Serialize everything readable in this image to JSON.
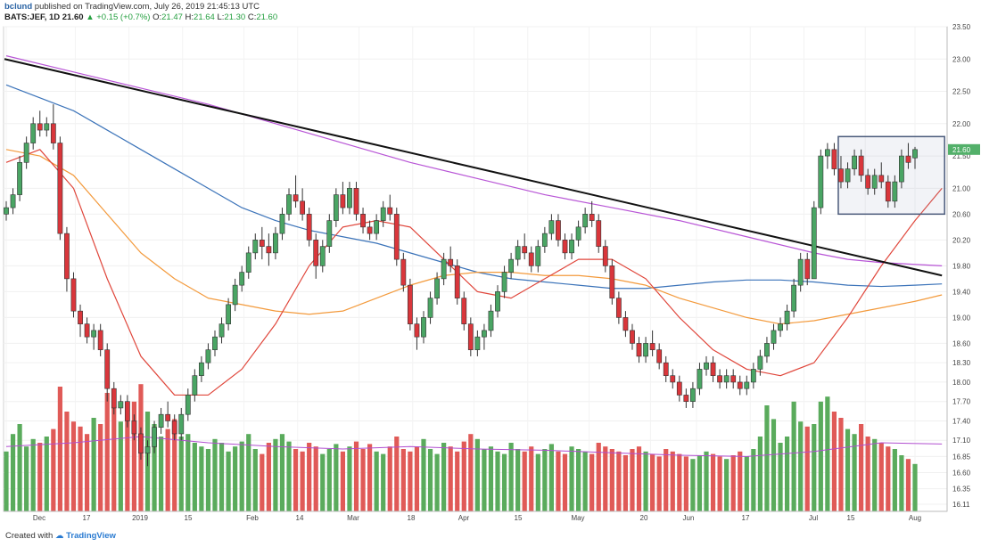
{
  "header": {
    "user": "bclund",
    "published": "published on TradingView.com, July 26, 2019 21:45:13 UTC",
    "symbol": "BATS:JEF, 1D",
    "last": "21.60",
    "change": "+0.15 (+0.7%)",
    "o_label": "O:",
    "o_value": "21.47",
    "h_label": "H:",
    "h_value": "21.64",
    "l_label": "L:",
    "l_value": "21.30",
    "c_label": "C:",
    "c_value": "21.60",
    "up_arrow": "▲"
  },
  "footer": {
    "created": "Created with",
    "brand": "TradingView"
  },
  "colors": {
    "up": "#4aa564",
    "down": "#d9363b",
    "vol_up": "#5aab5c",
    "vol_down": "#e05a57",
    "sma_fast": "#e0473c",
    "sma_mid": "#f39a3c",
    "sma_slow": "#3b73b9",
    "sma_long": "#b855d6",
    "trendline": "#111111",
    "box": "#4a5a7a",
    "vol_ma": "#b14fd0"
  },
  "chart_data": {
    "type": "candlestick",
    "ylim": [
      16.0,
      23.5
    ],
    "y_ticks": [
      "23.50",
      "23.00",
      "22.50",
      "22.00",
      "21.50",
      "21.00",
      "20.60",
      "20.20",
      "19.80",
      "19.40",
      "19.00",
      "18.60",
      "18.30",
      "18.00",
      "17.70",
      "17.40",
      "17.10",
      "16.85",
      "16.60",
      "16.35",
      "16.11"
    ],
    "x_ticks": [
      "Dec",
      "17",
      "2019",
      "15",
      "Feb",
      "14",
      "Mar",
      "18",
      "Apr",
      "15",
      "May",
      "20",
      "Jun",
      "17",
      "Jul",
      "15",
      "Aug"
    ],
    "last_price_label": "21.60",
    "candles": [
      [
        20.6,
        20.8,
        20.5,
        20.7
      ],
      [
        20.7,
        21.0,
        20.6,
        20.9
      ],
      [
        20.9,
        21.5,
        20.8,
        21.4
      ],
      [
        21.4,
        21.8,
        21.3,
        21.7
      ],
      [
        21.7,
        22.1,
        21.6,
        22.0
      ],
      [
        22.0,
        22.2,
        21.8,
        21.9
      ],
      [
        21.9,
        22.1,
        21.8,
        22.0
      ],
      [
        22.0,
        22.3,
        21.6,
        21.7
      ],
      [
        21.7,
        21.8,
        20.2,
        20.3
      ],
      [
        20.3,
        20.4,
        19.4,
        19.6
      ],
      [
        19.6,
        19.7,
        19.0,
        19.1
      ],
      [
        19.1,
        19.2,
        18.7,
        18.9
      ],
      [
        18.9,
        19.0,
        18.6,
        18.7
      ],
      [
        18.7,
        18.9,
        18.5,
        18.8
      ],
      [
        18.8,
        18.9,
        18.4,
        18.5
      ],
      [
        18.5,
        18.6,
        17.7,
        17.9
      ],
      [
        17.9,
        18.0,
        17.5,
        17.6
      ],
      [
        17.6,
        17.8,
        17.5,
        17.7
      ],
      [
        17.7,
        17.8,
        17.3,
        17.4
      ],
      [
        17.4,
        17.5,
        17.1,
        17.2
      ],
      [
        17.2,
        17.3,
        16.8,
        16.9
      ],
      [
        16.9,
        17.1,
        16.7,
        17.0
      ],
      [
        17.0,
        17.4,
        16.9,
        17.3
      ],
      [
        17.3,
        17.6,
        17.2,
        17.5
      ],
      [
        17.5,
        17.7,
        17.3,
        17.4
      ],
      [
        17.4,
        17.5,
        17.1,
        17.2
      ],
      [
        17.2,
        17.6,
        17.1,
        17.5
      ],
      [
        17.5,
        17.9,
        17.4,
        17.8
      ],
      [
        17.8,
        18.2,
        17.7,
        18.1
      ],
      [
        18.1,
        18.4,
        18.0,
        18.3
      ],
      [
        18.3,
        18.6,
        18.2,
        18.5
      ],
      [
        18.5,
        18.8,
        18.4,
        18.7
      ],
      [
        18.7,
        19.0,
        18.6,
        18.9
      ],
      [
        18.9,
        19.3,
        18.8,
        19.2
      ],
      [
        19.2,
        19.6,
        19.1,
        19.5
      ],
      [
        19.5,
        19.8,
        19.4,
        19.7
      ],
      [
        19.7,
        20.1,
        19.6,
        20.0
      ],
      [
        20.0,
        20.3,
        19.9,
        20.2
      ],
      [
        20.2,
        20.4,
        19.9,
        20.1
      ],
      [
        20.1,
        20.3,
        19.8,
        20.0
      ],
      [
        20.0,
        20.4,
        19.9,
        20.3
      ],
      [
        20.3,
        20.7,
        20.2,
        20.6
      ],
      [
        20.6,
        21.0,
        20.5,
        20.9
      ],
      [
        20.9,
        21.2,
        20.7,
        20.8
      ],
      [
        20.8,
        21.0,
        20.5,
        20.6
      ],
      [
        20.6,
        20.7,
        20.1,
        20.2
      ],
      [
        20.2,
        20.3,
        19.6,
        19.8
      ],
      [
        19.8,
        20.2,
        19.7,
        20.1
      ],
      [
        20.1,
        20.6,
        20.0,
        20.5
      ],
      [
        20.5,
        21.0,
        20.4,
        20.9
      ],
      [
        20.9,
        21.1,
        20.6,
        20.7
      ],
      [
        20.7,
        21.1,
        20.6,
        21.0
      ],
      [
        21.0,
        21.1,
        20.5,
        20.6
      ],
      [
        20.6,
        20.7,
        20.3,
        20.4
      ],
      [
        20.4,
        20.5,
        20.2,
        20.3
      ],
      [
        20.3,
        20.6,
        20.2,
        20.5
      ],
      [
        20.5,
        20.8,
        20.4,
        20.7
      ],
      [
        20.7,
        20.9,
        20.5,
        20.6
      ],
      [
        20.6,
        20.7,
        19.8,
        19.9
      ],
      [
        19.9,
        20.0,
        19.4,
        19.5
      ],
      [
        19.5,
        19.6,
        18.8,
        18.9
      ],
      [
        18.9,
        19.0,
        18.5,
        18.7
      ],
      [
        18.7,
        19.1,
        18.6,
        19.0
      ],
      [
        19.0,
        19.4,
        18.9,
        19.3
      ],
      [
        19.3,
        19.7,
        19.2,
        19.6
      ],
      [
        19.6,
        20.0,
        19.5,
        19.9
      ],
      [
        19.9,
        20.1,
        19.7,
        19.8
      ],
      [
        19.8,
        19.9,
        19.2,
        19.3
      ],
      [
        19.3,
        19.4,
        18.8,
        18.9
      ],
      [
        18.9,
        19.0,
        18.4,
        18.5
      ],
      [
        18.5,
        18.8,
        18.4,
        18.7
      ],
      [
        18.7,
        18.9,
        18.5,
        18.8
      ],
      [
        18.8,
        19.2,
        18.7,
        19.1
      ],
      [
        19.1,
        19.5,
        19.0,
        19.4
      ],
      [
        19.4,
        19.8,
        19.3,
        19.7
      ],
      [
        19.7,
        20.0,
        19.6,
        19.9
      ],
      [
        19.9,
        20.2,
        19.8,
        20.1
      ],
      [
        20.1,
        20.3,
        19.9,
        20.0
      ],
      [
        20.0,
        20.1,
        19.7,
        19.8
      ],
      [
        19.8,
        20.2,
        19.7,
        20.1
      ],
      [
        20.1,
        20.4,
        20.0,
        20.3
      ],
      [
        20.3,
        20.6,
        20.2,
        20.5
      ],
      [
        20.5,
        20.6,
        20.1,
        20.2
      ],
      [
        20.2,
        20.3,
        19.9,
        20.0
      ],
      [
        20.0,
        20.3,
        19.9,
        20.2
      ],
      [
        20.2,
        20.5,
        20.1,
        20.4
      ],
      [
        20.4,
        20.7,
        20.3,
        20.6
      ],
      [
        20.6,
        20.8,
        20.4,
        20.5
      ],
      [
        20.5,
        20.6,
        20.0,
        20.1
      ],
      [
        20.1,
        20.2,
        19.7,
        19.8
      ],
      [
        19.8,
        19.9,
        19.2,
        19.3
      ],
      [
        19.3,
        19.4,
        18.9,
        19.0
      ],
      [
        19.0,
        19.1,
        18.7,
        18.8
      ],
      [
        18.8,
        18.9,
        18.5,
        18.6
      ],
      [
        18.6,
        18.7,
        18.3,
        18.4
      ],
      [
        18.4,
        18.7,
        18.3,
        18.6
      ],
      [
        18.6,
        18.8,
        18.4,
        18.5
      ],
      [
        18.5,
        18.6,
        18.2,
        18.3
      ],
      [
        18.3,
        18.4,
        18.0,
        18.1
      ],
      [
        18.1,
        18.2,
        17.9,
        18.0
      ],
      [
        18.0,
        18.1,
        17.7,
        17.8
      ],
      [
        17.8,
        17.9,
        17.6,
        17.7
      ],
      [
        17.7,
        18.0,
        17.6,
        17.9
      ],
      [
        17.9,
        18.3,
        17.8,
        18.2
      ],
      [
        18.2,
        18.4,
        18.1,
        18.3
      ],
      [
        18.3,
        18.4,
        18.0,
        18.1
      ],
      [
        18.1,
        18.2,
        17.9,
        18.0
      ],
      [
        18.0,
        18.2,
        17.9,
        18.1
      ],
      [
        18.1,
        18.2,
        17.9,
        18.0
      ],
      [
        18.0,
        18.1,
        17.8,
        17.9
      ],
      [
        17.9,
        18.1,
        17.8,
        18.0
      ],
      [
        18.0,
        18.3,
        17.9,
        18.2
      ],
      [
        18.2,
        18.5,
        18.1,
        18.4
      ],
      [
        18.4,
        18.7,
        18.3,
        18.6
      ],
      [
        18.6,
        18.9,
        18.5,
        18.8
      ],
      [
        18.8,
        19.0,
        18.7,
        18.9
      ],
      [
        18.9,
        19.2,
        18.8,
        19.1
      ],
      [
        19.1,
        19.6,
        19.0,
        19.5
      ],
      [
        19.5,
        20.0,
        19.4,
        19.9
      ],
      [
        19.9,
        20.0,
        19.5,
        19.6
      ],
      [
        19.6,
        20.8,
        19.6,
        20.7
      ],
      [
        20.7,
        21.6,
        20.6,
        21.5
      ],
      [
        21.5,
        21.7,
        21.3,
        21.6
      ],
      [
        21.6,
        21.7,
        21.2,
        21.3
      ],
      [
        21.3,
        21.5,
        21.0,
        21.1
      ],
      [
        21.1,
        21.4,
        21.0,
        21.3
      ],
      [
        21.3,
        21.6,
        21.2,
        21.5
      ],
      [
        21.5,
        21.6,
        21.1,
        21.2
      ],
      [
        21.2,
        21.3,
        20.9,
        21.0
      ],
      [
        21.0,
        21.3,
        20.9,
        21.2
      ],
      [
        21.2,
        21.4,
        21.0,
        21.1
      ],
      [
        21.1,
        21.2,
        20.7,
        20.8
      ],
      [
        20.8,
        21.2,
        20.7,
        21.1
      ],
      [
        21.1,
        21.6,
        21.0,
        21.5
      ],
      [
        21.5,
        21.7,
        21.3,
        21.4
      ],
      [
        21.47,
        21.64,
        21.3,
        21.6
      ]
    ],
    "volume": [
      0.48,
      0.62,
      0.7,
      0.52,
      0.58,
      0.55,
      0.6,
      0.66,
      1.0,
      0.8,
      0.72,
      0.68,
      0.62,
      0.75,
      0.7,
      0.95,
      0.85,
      0.72,
      0.78,
      0.88,
      1.02,
      0.8,
      0.7,
      0.6,
      0.66,
      0.74,
      0.6,
      0.62,
      0.55,
      0.52,
      0.5,
      0.58,
      0.55,
      0.48,
      0.52,
      0.56,
      0.62,
      0.5,
      0.46,
      0.55,
      0.58,
      0.62,
      0.56,
      0.5,
      0.48,
      0.55,
      0.52,
      0.46,
      0.5,
      0.54,
      0.48,
      0.52,
      0.56,
      0.5,
      0.54,
      0.48,
      0.46,
      0.52,
      0.6,
      0.5,
      0.48,
      0.52,
      0.58,
      0.5,
      0.46,
      0.55,
      0.52,
      0.48,
      0.56,
      0.62,
      0.58,
      0.5,
      0.52,
      0.48,
      0.46,
      0.55,
      0.5,
      0.48,
      0.52,
      0.46,
      0.5,
      0.54,
      0.48,
      0.46,
      0.52,
      0.5,
      0.48,
      0.46,
      0.55,
      0.52,
      0.5,
      0.48,
      0.45,
      0.5,
      0.52,
      0.48,
      0.46,
      0.44,
      0.5,
      0.48,
      0.46,
      0.44,
      0.42,
      0.45,
      0.48,
      0.46,
      0.44,
      0.42,
      0.45,
      0.48,
      0.44,
      0.5,
      0.6,
      0.85,
      0.74,
      0.55,
      0.6,
      0.88,
      0.72,
      0.68,
      0.7,
      0.88,
      0.92,
      0.8,
      0.75,
      0.66,
      0.62,
      0.7,
      0.6,
      0.58,
      0.55,
      0.52,
      0.5,
      0.45,
      0.42,
      0.38
    ],
    "sma_fast": [
      [
        0,
        21.4
      ],
      [
        5,
        21.6
      ],
      [
        10,
        21.0
      ],
      [
        15,
        19.6
      ],
      [
        20,
        18.4
      ],
      [
        25,
        17.8
      ],
      [
        30,
        17.8
      ],
      [
        35,
        18.2
      ],
      [
        40,
        18.9
      ],
      [
        45,
        19.8
      ],
      [
        50,
        20.4
      ],
      [
        55,
        20.5
      ],
      [
        60,
        20.4
      ],
      [
        65,
        19.9
      ],
      [
        70,
        19.4
      ],
      [
        75,
        19.3
      ],
      [
        80,
        19.6
      ],
      [
        85,
        19.9
      ],
      [
        90,
        19.9
      ],
      [
        95,
        19.6
      ],
      [
        100,
        19.0
      ],
      [
        105,
        18.5
      ],
      [
        110,
        18.2
      ],
      [
        115,
        18.1
      ],
      [
        120,
        18.3
      ],
      [
        125,
        19.0
      ],
      [
        130,
        19.8
      ],
      [
        135,
        20.5
      ],
      [
        139,
        21.0
      ]
    ],
    "sma_mid": [
      [
        0,
        21.6
      ],
      [
        5,
        21.5
      ],
      [
        10,
        21.2
      ],
      [
        15,
        20.6
      ],
      [
        20,
        20.0
      ],
      [
        25,
        19.6
      ],
      [
        30,
        19.3
      ],
      [
        35,
        19.2
      ],
      [
        40,
        19.1
      ],
      [
        45,
        19.05
      ],
      [
        50,
        19.1
      ],
      [
        55,
        19.3
      ],
      [
        60,
        19.5
      ],
      [
        65,
        19.65
      ],
      [
        70,
        19.7
      ],
      [
        75,
        19.7
      ],
      [
        80,
        19.65
      ],
      [
        85,
        19.65
      ],
      [
        90,
        19.6
      ],
      [
        95,
        19.5
      ],
      [
        100,
        19.3
      ],
      [
        105,
        19.15
      ],
      [
        110,
        19.0
      ],
      [
        115,
        18.9
      ],
      [
        120,
        18.95
      ],
      [
        125,
        19.05
      ],
      [
        130,
        19.15
      ],
      [
        135,
        19.25
      ],
      [
        139,
        19.35
      ]
    ],
    "sma_slow": [
      [
        0,
        22.6
      ],
      [
        5,
        22.4
      ],
      [
        10,
        22.2
      ],
      [
        15,
        21.9
      ],
      [
        20,
        21.6
      ],
      [
        25,
        21.3
      ],
      [
        30,
        21.0
      ],
      [
        35,
        20.7
      ],
      [
        40,
        20.5
      ],
      [
        45,
        20.35
      ],
      [
        50,
        20.25
      ],
      [
        55,
        20.15
      ],
      [
        60,
        20.0
      ],
      [
        65,
        19.85
      ],
      [
        70,
        19.7
      ],
      [
        75,
        19.6
      ],
      [
        80,
        19.55
      ],
      [
        85,
        19.5
      ],
      [
        90,
        19.45
      ],
      [
        95,
        19.45
      ],
      [
        100,
        19.5
      ],
      [
        105,
        19.55
      ],
      [
        110,
        19.58
      ],
      [
        115,
        19.58
      ],
      [
        120,
        19.55
      ],
      [
        125,
        19.5
      ],
      [
        130,
        19.48
      ],
      [
        135,
        19.5
      ],
      [
        139,
        19.52
      ]
    ],
    "sma_long": [
      [
        0,
        23.05
      ],
      [
        10,
        22.8
      ],
      [
        20,
        22.55
      ],
      [
        30,
        22.3
      ],
      [
        40,
        22.0
      ],
      [
        50,
        21.7
      ],
      [
        60,
        21.4
      ],
      [
        70,
        21.15
      ],
      [
        80,
        20.9
      ],
      [
        90,
        20.7
      ],
      [
        100,
        20.5
      ],
      [
        110,
        20.25
      ],
      [
        120,
        20.0
      ],
      [
        125,
        19.9
      ],
      [
        130,
        19.85
      ],
      [
        139,
        19.8
      ]
    ],
    "trendline": [
      [
        0,
        23.0
      ],
      [
        139,
        19.65
      ]
    ],
    "box": {
      "x0": 124,
      "x1": 139,
      "y0": 20.6,
      "y1": 21.8
    },
    "vol_ma": [
      [
        0,
        0.52
      ],
      [
        10,
        0.55
      ],
      [
        20,
        0.6
      ],
      [
        30,
        0.55
      ],
      [
        40,
        0.52
      ],
      [
        50,
        0.5
      ],
      [
        60,
        0.52
      ],
      [
        70,
        0.5
      ],
      [
        80,
        0.49
      ],
      [
        90,
        0.47
      ],
      [
        100,
        0.45
      ],
      [
        110,
        0.44
      ],
      [
        120,
        0.48
      ],
      [
        130,
        0.55
      ],
      [
        139,
        0.54
      ]
    ]
  }
}
